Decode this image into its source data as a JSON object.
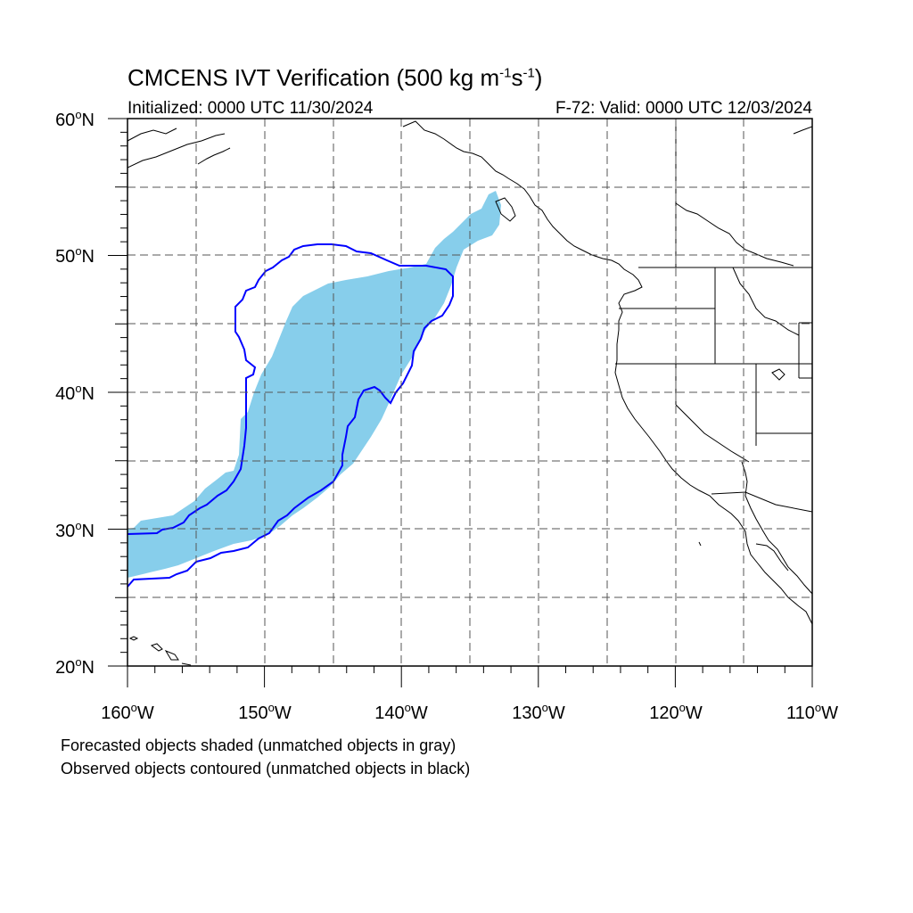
{
  "header": {
    "title_prefix": "CMCENS IVT Verification (500 kg m",
    "title_exp1": "-1",
    "title_mid": "s",
    "title_exp2": "-1",
    "title_suffix": ")",
    "initialized": "Initialized: 0000 UTC 11/30/2024",
    "valid": "F-72: Valid: 0000 UTC 12/03/2024"
  },
  "axes": {
    "lon_labels": [
      "160",
      "150",
      "140",
      "130",
      "120",
      "110"
    ],
    "lon_suffix": "W",
    "lat_labels": [
      "60",
      "50",
      "40",
      "30",
      "20"
    ],
    "lat_suffix": "N",
    "degree_symbol": "o",
    "lon_range": [
      -160,
      -110
    ],
    "lat_range": [
      20,
      60
    ]
  },
  "legend": {
    "forecast_note": "Forecasted objects shaded (unmatched objects in gray)",
    "observed_note": "Observed objects contoured (unmatched objects in black)"
  },
  "colors": {
    "forecast_fill": "#87ceeb",
    "observed_contour": "#0000ff",
    "coastline": "#000000",
    "grid": "#555555"
  }
}
